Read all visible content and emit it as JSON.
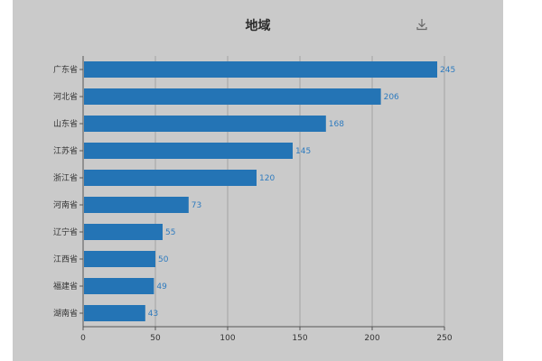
{
  "chart_data": {
    "type": "bar",
    "orientation": "horizontal",
    "title": "地域",
    "categories": [
      "广东省",
      "河北省",
      "山东省",
      "江苏省",
      "浙江省",
      "河南省",
      "辽宁省",
      "江西省",
      "福建省",
      "湖南省"
    ],
    "values": [
      245,
      206,
      168,
      145,
      120,
      73,
      55,
      50,
      49,
      43
    ],
    "xlim": [
      0,
      250
    ],
    "xticks": [
      0,
      50,
      100,
      150,
      200,
      250
    ],
    "grid": true,
    "bar_color": "#2474b5",
    "label_color": "#2e7bbf"
  },
  "toolbar": {
    "download_icon": "download-icon"
  }
}
